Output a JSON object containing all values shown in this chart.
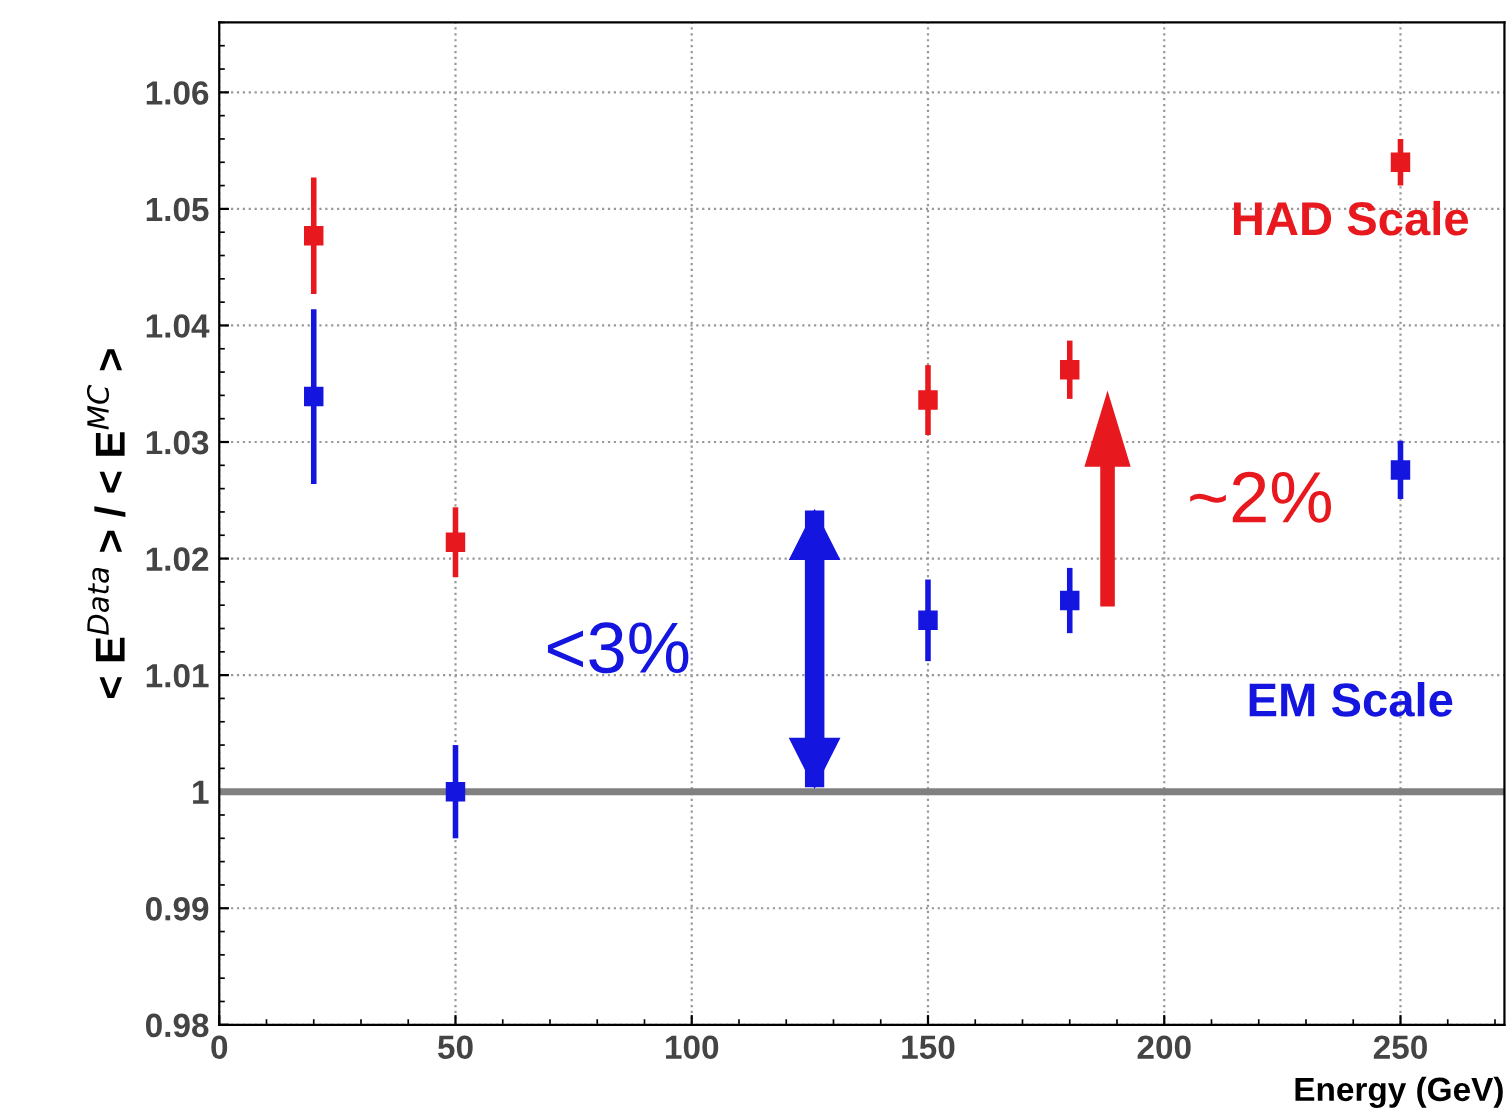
{
  "chart_data": {
    "type": "scatter",
    "xlabel": "Energy (GeV)",
    "ylabel": "< E$^{Data}$ > / < E$^{MC}$ >",
    "x": [
      20,
      50,
      150,
      180,
      250
    ],
    "series": [
      {
        "name": "HAD Scale",
        "color": "#e8191e",
        "values": [
          1.0477,
          1.0214,
          1.0336,
          1.0362,
          1.054
        ],
        "errors": [
          0.005,
          0.003,
          0.003,
          0.0025,
          0.002
        ]
      },
      {
        "name": "EM Scale",
        "color": "#1515e0",
        "values": [
          1.0339,
          1.0,
          1.0147,
          1.0164,
          1.0276
        ],
        "errors": [
          0.0075,
          0.004,
          0.0035,
          0.0028,
          0.0025
        ]
      }
    ],
    "annotations": [
      "<3%",
      "~2%"
    ],
    "ref_lines": [
      {
        "axis": "y",
        "value": 1,
        "color": "#808080"
      }
    ],
    "xlim": [
      0,
      272
    ],
    "ylim": [
      0.98,
      1.066
    ],
    "xticks": [
      0,
      50,
      100,
      150,
      200,
      250
    ],
    "yticks": [
      0.98,
      0.99,
      1,
      1.01,
      1.02,
      1.03,
      1.04,
      1.05,
      1.06
    ],
    "grid": true,
    "marker": "square"
  }
}
